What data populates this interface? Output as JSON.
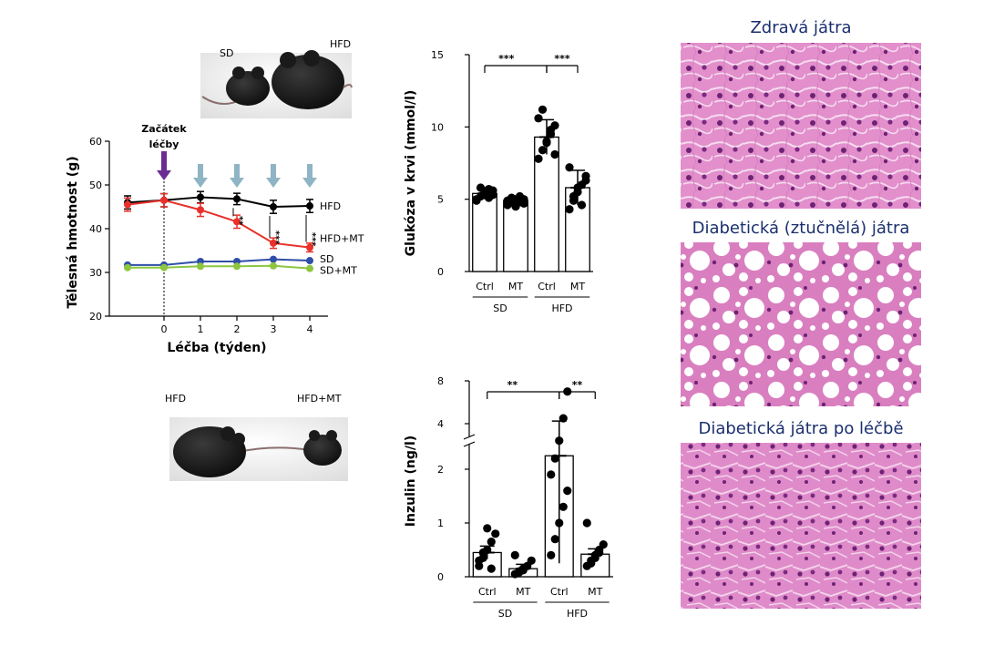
{
  "colors": {
    "hfd": "#000000",
    "hfd_mt": "#e8312b",
    "sd": "#2e4ea8",
    "sd_mt": "#8cc63f",
    "arrow_start": "#6a2d91",
    "arrow_week": "#8fb4c4",
    "caption": "#1a2f6e",
    "liver_pink": "#e08ac9",
    "liver_nucleus": "#6a1f6e"
  },
  "mouse_photos": {
    "top_left_label": "SD",
    "top_right_label": "HFD",
    "bottom_left_label": "HFD",
    "bottom_right_label": "HFD+MT"
  },
  "histology": {
    "panel1_title": "Zdravá játra",
    "panel2_title": "Diabetická (ztučnělá) játra",
    "panel3_title": "Diabetická játra po léčbě"
  },
  "chart_data": [
    {
      "type": "line",
      "title": "",
      "xlabel": "Léčba (týden)",
      "ylabel": "Tělesná hmotnost (g)",
      "ylim": [
        20,
        60
      ],
      "yticks": [
        "20",
        "30",
        "40",
        "50",
        "60"
      ],
      "x": [
        -1,
        0,
        1,
        2,
        3,
        4
      ],
      "xtick_labels": [
        "0",
        "1",
        "2",
        "3",
        "4"
      ],
      "start_annotation": [
        "Začátek",
        "léčby"
      ],
      "series": [
        {
          "name": "HFD",
          "values": [
            46,
            46.5,
            47.2,
            46.8,
            45,
            45.2
          ],
          "err": [
            1.5,
            1.5,
            1.3,
            1.3,
            1.5,
            1.5
          ]
        },
        {
          "name": "HFD+MT",
          "values": [
            45.5,
            46.5,
            44.3,
            41.6,
            36.7,
            35.7
          ],
          "err": [
            1.5,
            1.5,
            1.5,
            1.5,
            1.2,
            1.0
          ]
        },
        {
          "name": "SD",
          "values": [
            31.7,
            31.7,
            32.5,
            32.5,
            33,
            32.7
          ],
          "err": [
            0.3,
            0.3,
            0.3,
            0.3,
            0.3,
            0.3
          ]
        },
        {
          "name": "SD+MT",
          "values": [
            31.1,
            31.1,
            31.4,
            31.4,
            31.5,
            30.9
          ],
          "err": [
            0.3,
            0.3,
            0.3,
            0.3,
            0.3,
            0.3
          ]
        }
      ],
      "significance": [
        {
          "week": 2,
          "label": "**"
        },
        {
          "week": 3,
          "label": "***"
        },
        {
          "week": 4,
          "label": "***"
        }
      ]
    },
    {
      "type": "bar",
      "title": "",
      "ylabel": "Glukóza v krvi (mmol/l)",
      "ylim": [
        0,
        15
      ],
      "yticks": [
        "0",
        "5",
        "10",
        "15"
      ],
      "categories": [
        "Ctrl",
        "MT",
        "Ctrl",
        "MT"
      ],
      "groups": [
        "SD",
        "HFD"
      ],
      "values": [
        5.4,
        4.9,
        9.3,
        5.8
      ],
      "err": [
        0.4,
        0.3,
        1.2,
        1.2
      ],
      "points": [
        [
          5.0,
          5.2,
          5.5,
          5.7,
          5.3,
          4.9,
          5.8,
          5.4,
          5.1,
          5.6
        ],
        [
          4.6,
          4.8,
          5.0,
          5.2,
          4.7,
          4.9,
          5.1,
          4.5,
          4.8,
          5.0
        ],
        [
          7.8,
          8.4,
          9.0,
          9.5,
          10.1,
          10.6,
          11.2,
          8.9,
          9.8,
          8.1
        ],
        [
          4.3,
          4.9,
          5.5,
          6.0,
          6.6,
          7.2,
          5.2,
          5.8,
          4.6,
          6.3
        ]
      ],
      "significance": [
        {
          "from": 0,
          "to": 2,
          "label": "***"
        },
        {
          "from": 2,
          "to": 3,
          "label": "***"
        }
      ]
    },
    {
      "type": "bar",
      "title": "",
      "ylabel": "Inzulin (ng/l)",
      "ylim": [
        0,
        8
      ],
      "axis_break": [
        2.5,
        3.5
      ],
      "yticks": [
        "0",
        "1",
        "2",
        "4",
        "8"
      ],
      "categories": [
        "Ctrl",
        "MT",
        "Ctrl",
        "MT"
      ],
      "groups": [
        "SD",
        "HFD"
      ],
      "values": [
        0.45,
        0.15,
        2.25,
        0.42
      ],
      "err": [
        0.12,
        0.08,
        2.0,
        0.1
      ],
      "points": [
        [
          0.2,
          0.35,
          0.5,
          0.65,
          0.8,
          0.3,
          0.45,
          0.9,
          0.15
        ],
        [
          0.05,
          0.1,
          0.15,
          0.2,
          0.3,
          0.4,
          0.08,
          0.12
        ],
        [
          0.4,
          0.7,
          1.0,
          1.3,
          1.6,
          1.9,
          2.2,
          2.6,
          4.5,
          7.0
        ],
        [
          0.2,
          0.3,
          0.4,
          0.5,
          0.6,
          1.0,
          0.25,
          0.35,
          0.45
        ]
      ],
      "significance": [
        {
          "from": 0,
          "to": 2,
          "label": "**"
        },
        {
          "from": 2,
          "to": 3,
          "label": "**"
        }
      ]
    }
  ]
}
